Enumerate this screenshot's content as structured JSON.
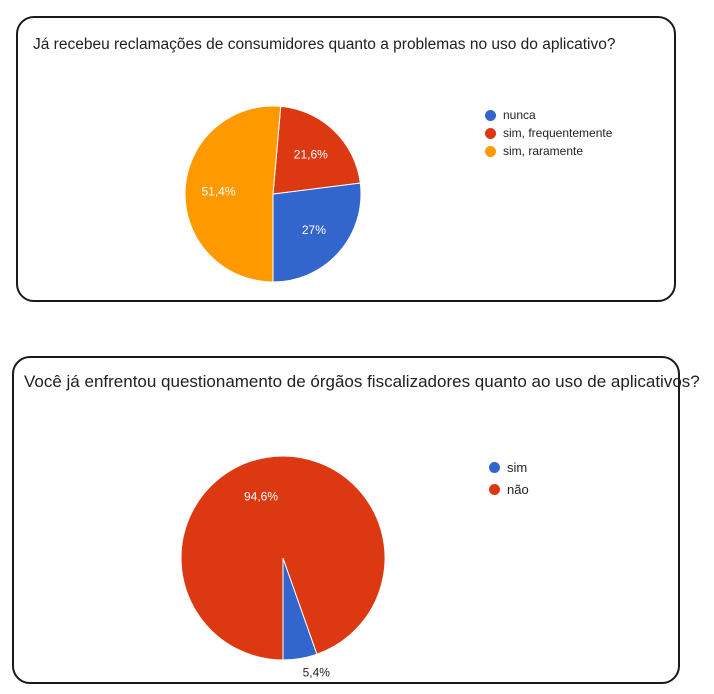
{
  "chart_data": [
    {
      "type": "pie",
      "title": "Já recebeu reclamações de consumidores quanto a problemas no uso do aplicativo?",
      "categories": [
        "nunca",
        "sim, frequentemente",
        "sim, raramente"
      ],
      "values": [
        27,
        21.6,
        51.4
      ],
      "labels": [
        "27%",
        "21,6%",
        "51,4%"
      ],
      "colors": [
        "#3366cc",
        "#dc3912",
        "#ff9900"
      ],
      "legend": "right"
    },
    {
      "type": "pie",
      "title": "Você já enfrentou questionamento de órgãos fiscalizadores quanto ao uso de aplicativos?",
      "categories": [
        "sim",
        "não"
      ],
      "values": [
        5.4,
        94.6
      ],
      "labels": [
        "5,4%",
        "94,6%"
      ],
      "colors": [
        "#3366cc",
        "#dc3912"
      ],
      "legend": "right"
    }
  ]
}
